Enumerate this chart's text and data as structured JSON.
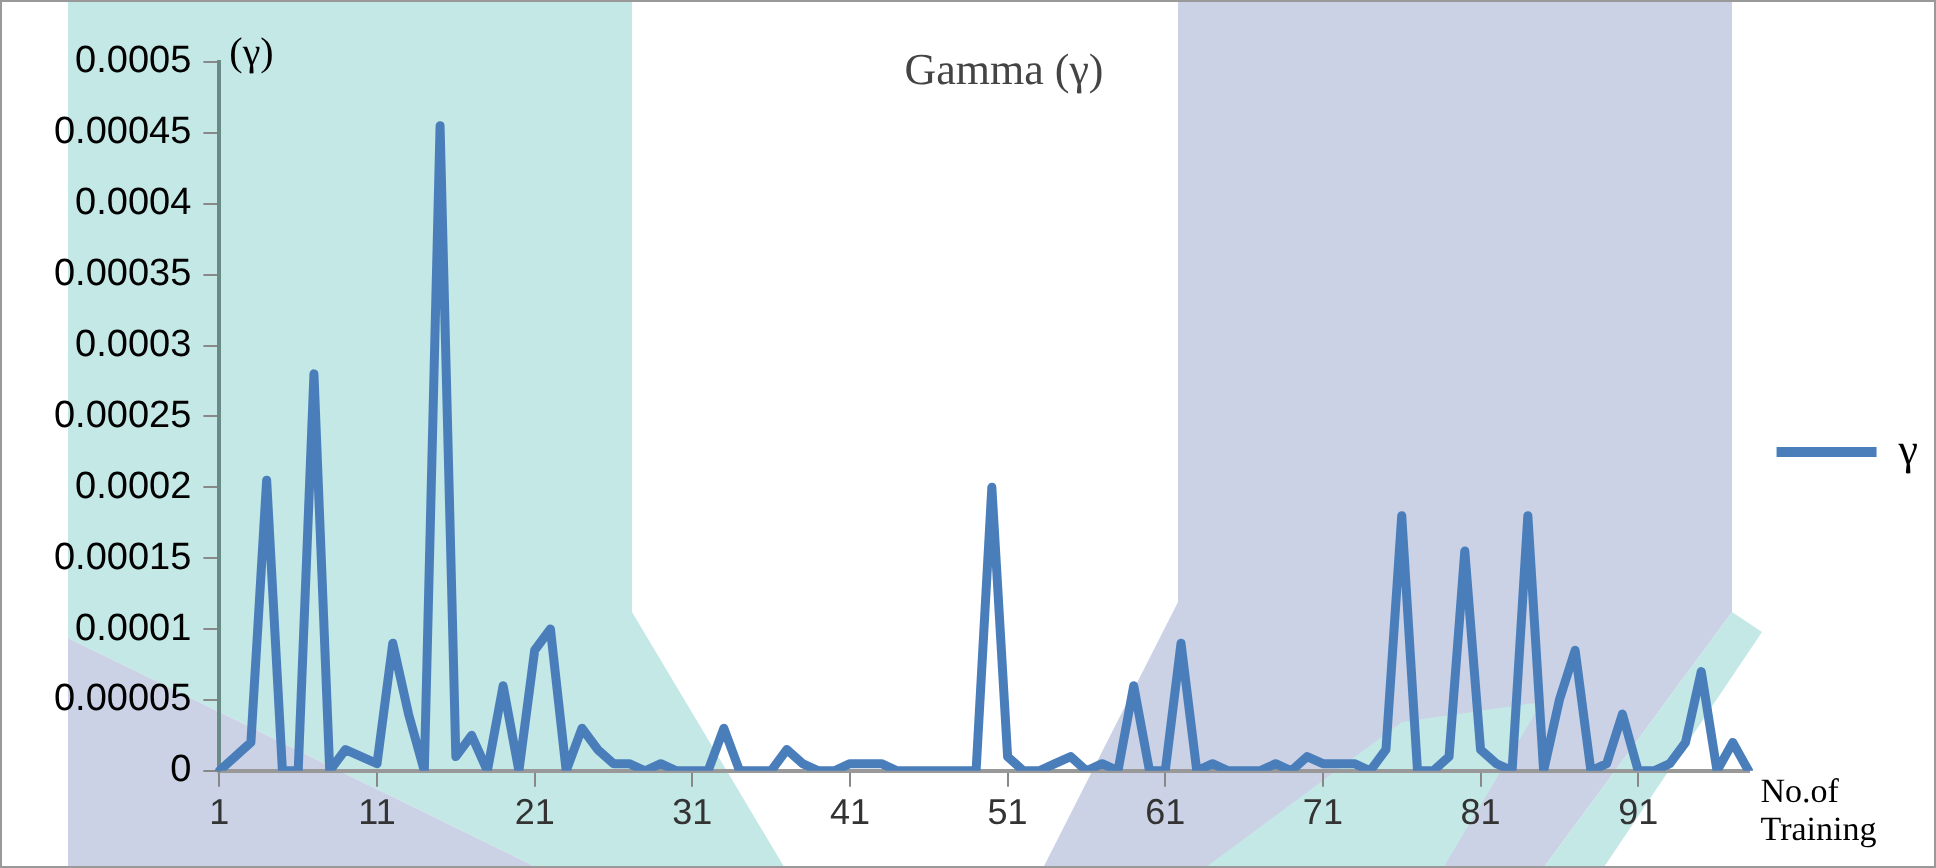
{
  "chart_data": {
    "type": "line",
    "title": "Gamma (γ)",
    "xlabel": "No.of Training",
    "ylabel": "(γ)",
    "categories": [
      "1",
      null,
      null,
      null,
      null,
      null,
      null,
      null,
      null,
      null,
      "11",
      null,
      null,
      null,
      null,
      null,
      null,
      null,
      null,
      null,
      "21",
      null,
      null,
      null,
      null,
      null,
      null,
      null,
      null,
      null,
      "31",
      null,
      null,
      null,
      null,
      null,
      null,
      null,
      null,
      null,
      "41",
      null,
      null,
      null,
      null,
      null,
      null,
      null,
      null,
      null,
      "51",
      null,
      null,
      null,
      null,
      null,
      null,
      null,
      null,
      null,
      "61",
      null,
      null,
      null,
      null,
      null,
      null,
      null,
      null,
      null,
      "71",
      null,
      null,
      null,
      null,
      null,
      null,
      null,
      null,
      null,
      "81",
      null,
      null,
      null,
      null,
      null,
      null,
      null,
      null,
      null,
      "91",
      null,
      null,
      null,
      null,
      null,
      null,
      null
    ],
    "series": [
      {
        "name": "γ",
        "color": "#4a7ebb",
        "values": [
          0,
          1e-05,
          2e-05,
          0.000205,
          0,
          0,
          0.00028,
          0,
          1.5e-05,
          1e-05,
          5e-06,
          9e-05,
          4e-05,
          0,
          0.000455,
          1e-05,
          2.5e-05,
          0,
          6e-05,
          0,
          8.5e-05,
          0.0001,
          0,
          3e-05,
          1.5e-05,
          5e-06,
          5e-06,
          0,
          5e-06,
          0,
          0,
          0,
          3e-05,
          0,
          0,
          0,
          1.5e-05,
          5e-06,
          0,
          0,
          5e-06,
          5e-06,
          5e-06,
          0,
          0,
          0,
          0,
          0,
          0,
          0.0002,
          1e-05,
          0,
          0,
          5e-06,
          1e-05,
          0,
          5e-06,
          0,
          6e-05,
          0,
          0,
          9e-05,
          0,
          5e-06,
          0,
          0,
          0,
          5e-06,
          0,
          1e-05,
          5e-06,
          5e-06,
          5e-06,
          0,
          1.5e-05,
          0.00018,
          0,
          0,
          1e-05,
          0.000155,
          1.5e-05,
          5e-06,
          0,
          0.00018,
          0,
          5e-05,
          8.5e-05,
          0,
          5e-06,
          4e-05,
          0,
          0,
          5e-06,
          2e-05,
          7e-05,
          0,
          2e-05,
          0
        ]
      }
    ],
    "ylim": [
      0,
      0.0005
    ],
    "yticks": [
      0,
      {
        "value": 5e-05,
        "label": "0.00005"
      },
      0.0001,
      0.00015,
      0.0002,
      0.00025,
      0.0003,
      0.00035,
      0.0004,
      0.00045,
      0.0005
    ],
    "grid": false,
    "legend": "right",
    "marker": "none",
    "line_style": "solid"
  }
}
